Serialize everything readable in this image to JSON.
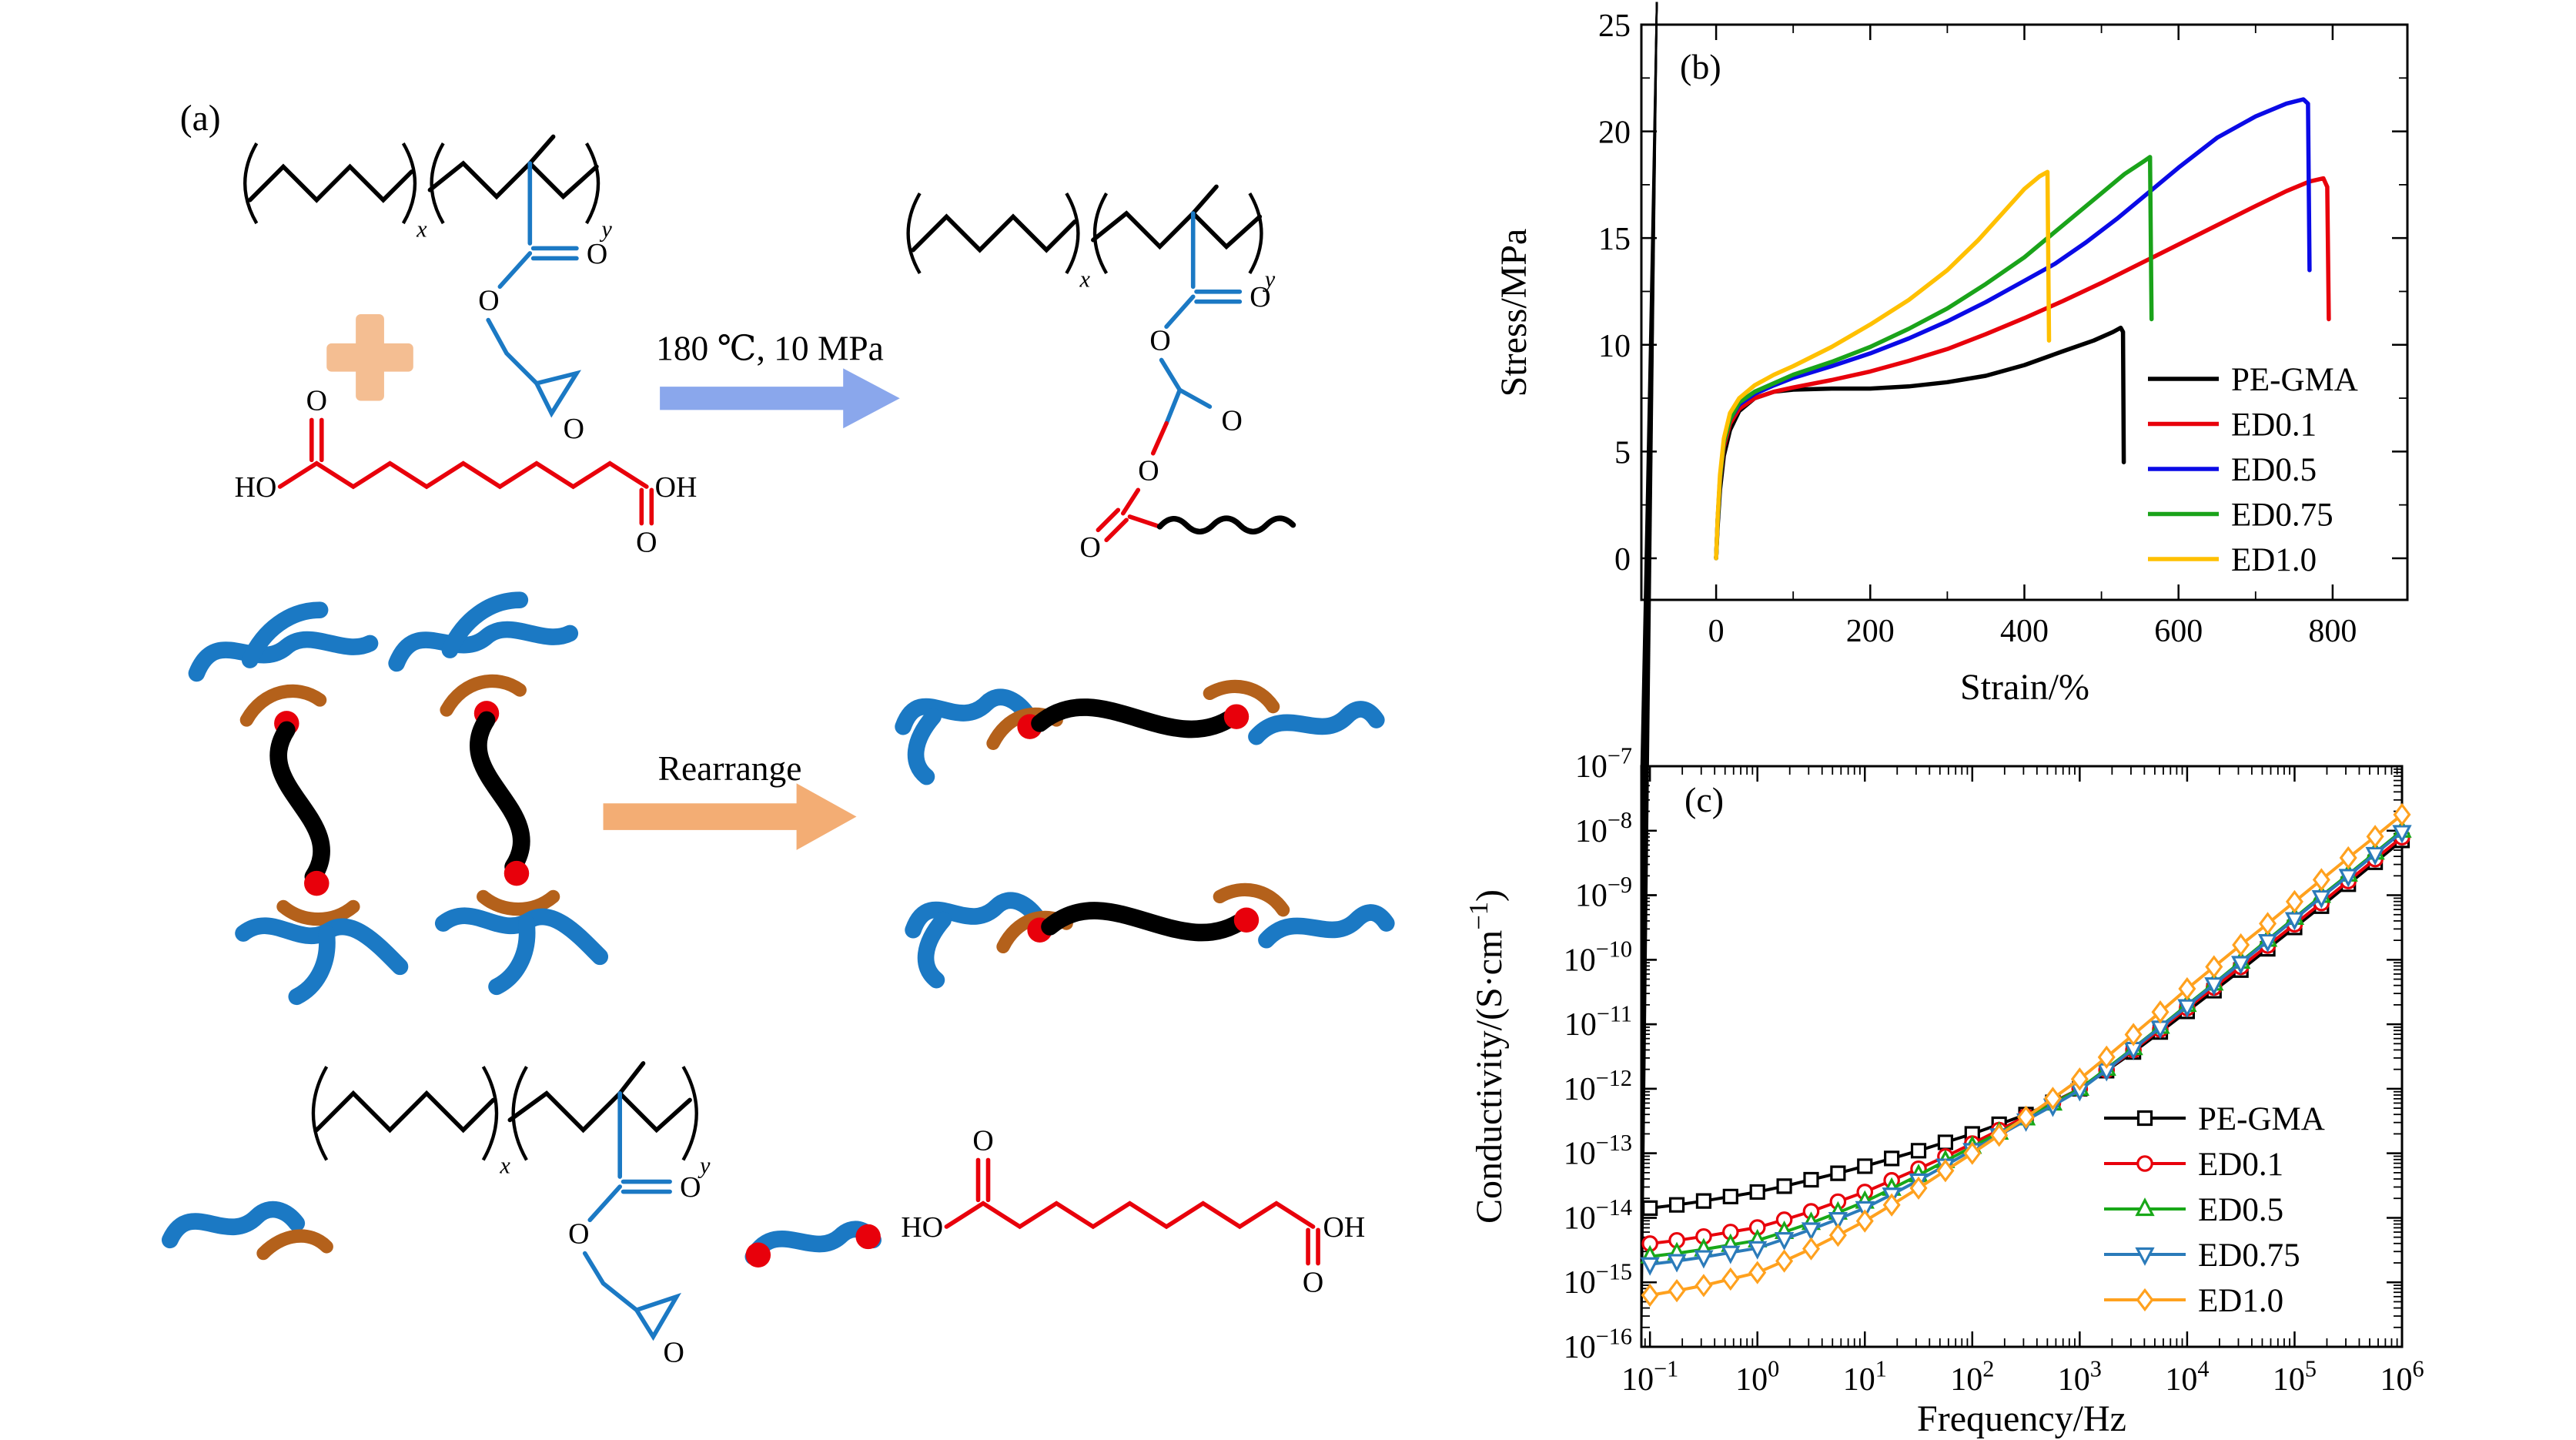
{
  "figure": {
    "background": "#ffffff",
    "panels": {
      "a": "(a)",
      "b": "(b)",
      "c": "(c)"
    }
  },
  "scheme": {
    "condition": "180 ℃, 10 MPa",
    "rearrange": "Rearrange",
    "atom_o": "O",
    "atom_ho": "HO",
    "atom_oh": "OH",
    "sub_x": "x",
    "sub_y": "y",
    "colors": {
      "backbone_black": "#000000",
      "gma_blue": "#1b79c4",
      "acid_red": "#e8000b",
      "plus_peach": "#f4be92",
      "reaction_arrow_blue": "#8aa7ec",
      "rearrange_arrow_orange": "#f3ad74",
      "hook_brown": "#b4611b",
      "dot_red": "#e8000b"
    }
  },
  "chart_data": [
    {
      "id": "stress-strain",
      "type": "line",
      "panel_label": "(b)",
      "xlabel": "Strain/%",
      "ylabel": "Stress/MPa",
      "ylabel_parts": [
        {
          "text": "Stress/MPa"
        }
      ],
      "xlim": [
        -97,
        897
      ],
      "ylim": [
        -1.95,
        25
      ],
      "x_ticks": [
        0,
        200,
        400,
        600,
        800
      ],
      "y_ticks": [
        0,
        5,
        10,
        15,
        20,
        25
      ],
      "x_minor": [
        100,
        300,
        500,
        700
      ],
      "y_minor": [
        2.5,
        7.5,
        12.5,
        17.5,
        22.5
      ],
      "grid": false,
      "legend_position": "inside-right-middle",
      "series": [
        {
          "name": "PE-GMA",
          "color": "#000000",
          "points": [
            [
              0,
              0
            ],
            [
              2,
              1.5
            ],
            [
              5,
              3.2
            ],
            [
              10,
              4.8
            ],
            [
              18,
              6.0
            ],
            [
              30,
              6.9
            ],
            [
              50,
              7.5
            ],
            [
              75,
              7.8
            ],
            [
              100,
              7.9
            ],
            [
              150,
              7.95
            ],
            [
              200,
              7.95
            ],
            [
              250,
              8.05
            ],
            [
              300,
              8.25
            ],
            [
              350,
              8.55
            ],
            [
              400,
              9.05
            ],
            [
              450,
              9.7
            ],
            [
              490,
              10.2
            ],
            [
              515,
              10.6
            ],
            [
              525,
              10.8
            ],
            [
              528,
              10.6
            ],
            [
              529,
              4.5
            ]
          ]
        },
        {
          "name": "ED0.1",
          "color": "#e8000b",
          "points": [
            [
              0,
              0
            ],
            [
              2,
              1.8
            ],
            [
              5,
              3.6
            ],
            [
              10,
              5.2
            ],
            [
              18,
              6.3
            ],
            [
              30,
              7.0
            ],
            [
              50,
              7.5
            ],
            [
              75,
              7.8
            ],
            [
              100,
              8.0
            ],
            [
              150,
              8.35
            ],
            [
              200,
              8.75
            ],
            [
              250,
              9.25
            ],
            [
              300,
              9.8
            ],
            [
              350,
              10.5
            ],
            [
              400,
              11.25
            ],
            [
              450,
              12.05
            ],
            [
              500,
              12.9
            ],
            [
              550,
              13.8
            ],
            [
              600,
              14.7
            ],
            [
              650,
              15.6
            ],
            [
              700,
              16.5
            ],
            [
              740,
              17.2
            ],
            [
              770,
              17.65
            ],
            [
              788,
              17.8
            ],
            [
              793,
              17.4
            ],
            [
              795,
              11.2
            ]
          ]
        },
        {
          "name": "ED0.5",
          "color": "#0a0ae6",
          "points": [
            [
              0,
              0
            ],
            [
              2,
              1.8
            ],
            [
              5,
              3.7
            ],
            [
              10,
              5.4
            ],
            [
              18,
              6.5
            ],
            [
              30,
              7.2
            ],
            [
              50,
              7.7
            ],
            [
              75,
              8.1
            ],
            [
              100,
              8.45
            ],
            [
              150,
              9.0
            ],
            [
              200,
              9.6
            ],
            [
              250,
              10.3
            ],
            [
              300,
              11.1
            ],
            [
              350,
              12.0
            ],
            [
              400,
              13.0
            ],
            [
              440,
              13.8
            ],
            [
              480,
              14.8
            ],
            [
              520,
              15.9
            ],
            [
              560,
              17.1
            ],
            [
              600,
              18.3
            ],
            [
              650,
              19.7
            ],
            [
              700,
              20.7
            ],
            [
              740,
              21.3
            ],
            [
              762,
              21.5
            ],
            [
              768,
              21.3
            ],
            [
              770,
              13.5
            ]
          ]
        },
        {
          "name": "ED0.75",
          "color": "#1aa31a",
          "points": [
            [
              0,
              0
            ],
            [
              2,
              1.8
            ],
            [
              5,
              3.7
            ],
            [
              10,
              5.4
            ],
            [
              18,
              6.5
            ],
            [
              30,
              7.3
            ],
            [
              50,
              7.8
            ],
            [
              75,
              8.2
            ],
            [
              100,
              8.6
            ],
            [
              150,
              9.2
            ],
            [
              200,
              9.9
            ],
            [
              250,
              10.75
            ],
            [
              300,
              11.7
            ],
            [
              350,
              12.85
            ],
            [
              400,
              14.1
            ],
            [
              450,
              15.6
            ],
            [
              500,
              17.1
            ],
            [
              530,
              18.0
            ],
            [
              555,
              18.6
            ],
            [
              563,
              18.8
            ],
            [
              565,
              11.2
            ]
          ]
        },
        {
          "name": "ED1.0",
          "color": "#ffc000",
          "points": [
            [
              0,
              0
            ],
            [
              2,
              1.9
            ],
            [
              5,
              3.9
            ],
            [
              10,
              5.6
            ],
            [
              18,
              6.8
            ],
            [
              30,
              7.5
            ],
            [
              50,
              8.1
            ],
            [
              75,
              8.6
            ],
            [
              100,
              9.0
            ],
            [
              150,
              9.9
            ],
            [
              200,
              10.95
            ],
            [
              250,
              12.1
            ],
            [
              300,
              13.5
            ],
            [
              340,
              14.9
            ],
            [
              370,
              16.1
            ],
            [
              400,
              17.3
            ],
            [
              420,
              17.9
            ],
            [
              430,
              18.1
            ],
            [
              432,
              10.2
            ]
          ]
        }
      ]
    },
    {
      "id": "conductivity",
      "type": "line",
      "panel_label": "(c)",
      "xlabel": "Frequency/Hz",
      "ylabel": "Conductivity/(S·cm⁻¹)",
      "ylabel_parts": [
        {
          "text": "Conductivity/(S·cm"
        },
        {
          "text": "−1",
          "sup": true
        },
        {
          "text": ")",
          "reset": true
        }
      ],
      "x_scale": "log",
      "y_scale": "log",
      "xlim": [
        -1.08,
        6
      ],
      "ylim": [
        -16,
        -7
      ],
      "x_tick_exponents": [
        -1,
        0,
        1,
        2,
        3,
        4,
        5,
        6
      ],
      "y_tick_exponents": [
        -7,
        -8,
        -9,
        -10,
        -11,
        -12,
        -13,
        -14,
        -15,
        -16
      ],
      "grid": false,
      "legend_position": "inside-right-bottom",
      "x_log10": [
        -1,
        -0.75,
        -0.5,
        -0.25,
        0,
        0.25,
        0.5,
        0.75,
        1,
        1.25,
        1.5,
        1.75,
        2,
        2.25,
        2.5,
        2.75,
        3,
        3.25,
        3.5,
        3.75,
        4,
        4.25,
        4.5,
        4.75,
        5,
        5.25,
        5.5,
        5.75,
        6
      ],
      "series": [
        {
          "name": "PE-GMA",
          "color": "#000000",
          "marker": "square",
          "y_log10": [
            -13.85,
            -13.8,
            -13.74,
            -13.67,
            -13.6,
            -13.51,
            -13.41,
            -13.31,
            -13.2,
            -13.08,
            -12.96,
            -12.83,
            -12.7,
            -12.55,
            -12.4,
            -12.21,
            -12.0,
            -11.72,
            -11.43,
            -11.12,
            -10.8,
            -10.48,
            -10.16,
            -9.83,
            -9.5,
            -9.17,
            -8.83,
            -8.49,
            -8.15
          ]
        },
        {
          "name": "ED0.1",
          "color": "#e8000b",
          "marker": "circle",
          "y_log10": [
            -14.4,
            -14.35,
            -14.29,
            -14.22,
            -14.15,
            -14.03,
            -13.9,
            -13.75,
            -13.6,
            -13.42,
            -13.24,
            -13.05,
            -12.85,
            -12.64,
            -12.43,
            -12.22,
            -12.0,
            -11.71,
            -11.4,
            -11.08,
            -10.75,
            -10.43,
            -10.11,
            -9.78,
            -9.45,
            -9.12,
            -8.78,
            -8.44,
            -8.1
          ]
        },
        {
          "name": "ED0.5",
          "color": "#18a818",
          "marker": "triangle-up",
          "y_log10": [
            -14.6,
            -14.55,
            -14.49,
            -14.42,
            -14.35,
            -14.22,
            -14.08,
            -13.92,
            -13.75,
            -13.55,
            -13.34,
            -13.12,
            -12.9,
            -12.68,
            -12.46,
            -12.23,
            -12.0,
            -11.69,
            -11.37,
            -11.04,
            -10.7,
            -10.37,
            -10.03,
            -9.69,
            -9.35,
            -9.01,
            -8.68,
            -8.34,
            -8.0
          ]
        },
        {
          "name": "ED0.75",
          "color": "#2b7bba",
          "marker": "triangle-down",
          "y_log10": [
            -14.72,
            -14.67,
            -14.61,
            -14.54,
            -14.47,
            -14.33,
            -14.18,
            -14.02,
            -13.85,
            -13.64,
            -13.42,
            -13.19,
            -12.95,
            -12.72,
            -12.49,
            -12.26,
            -12.02,
            -11.71,
            -11.38,
            -11.05,
            -10.72,
            -10.38,
            -10.05,
            -9.71,
            -9.37,
            -9.03,
            -8.7,
            -8.36,
            -8.02
          ]
        },
        {
          "name": "ED1.0",
          "color": "#ffa11e",
          "marker": "diamond",
          "y_log10": [
            -15.2,
            -15.13,
            -15.05,
            -14.95,
            -14.85,
            -14.67,
            -14.48,
            -14.27,
            -14.05,
            -13.8,
            -13.54,
            -13.27,
            -13.0,
            -12.72,
            -12.44,
            -12.15,
            -11.85,
            -11.51,
            -11.16,
            -10.81,
            -10.45,
            -10.11,
            -9.77,
            -9.44,
            -9.1,
            -8.76,
            -8.42,
            -8.09,
            -7.75
          ]
        }
      ]
    }
  ]
}
